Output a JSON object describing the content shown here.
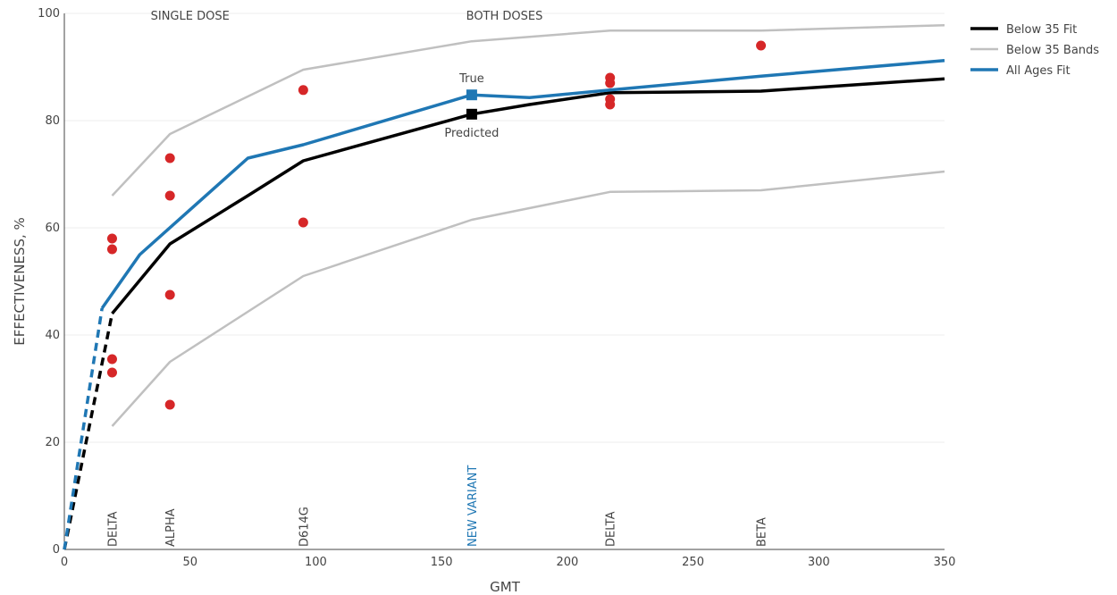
{
  "chart_data": {
    "type": "line",
    "xlabel": "GMT",
    "ylabel": "EFFECTIVENESS, %",
    "xlim": [
      0,
      350
    ],
    "ylim": [
      0,
      100
    ],
    "x_ticks": [
      0,
      50,
      100,
      150,
      200,
      250,
      300,
      350
    ],
    "y_ticks": [
      0,
      20,
      40,
      60,
      80,
      100
    ],
    "grid": "horizontal",
    "legend_position": "top-right",
    "section_labels": [
      {
        "text": "SINGLE DOSE",
        "x": 50
      },
      {
        "text": "BOTH DOSES",
        "x": 175
      }
    ],
    "variant_labels": [
      {
        "text": "DELTA",
        "x": 19,
        "color": "#444444"
      },
      {
        "text": "ALPHA",
        "x": 42,
        "color": "#444444"
      },
      {
        "text": "D614G",
        "x": 95,
        "color": "#444444"
      },
      {
        "text": "NEW VARIANT",
        "x": 162,
        "color": "#1f77b4"
      },
      {
        "text": "DELTA",
        "x": 217,
        "color": "#444444"
      },
      {
        "text": "BETA",
        "x": 277,
        "color": "#444444"
      }
    ],
    "series": [
      {
        "name": "Below 35 Fit",
        "color": "#000000",
        "width": 3.5,
        "x": [
          19,
          42,
          73,
          95,
          162,
          185,
          217,
          277,
          350
        ],
        "y": [
          44,
          57,
          66,
          72.5,
          81.2,
          83,
          85.2,
          85.5,
          87.8
        ],
        "dashed_x": [
          0,
          19
        ],
        "dashed_y": [
          0,
          44
        ]
      },
      {
        "name": "Below 35 Bands",
        "color": "#c0c0c0",
        "width": 2.5,
        "x": [
          19,
          42,
          95,
          162,
          217,
          277,
          350
        ],
        "y": [
          66,
          77.5,
          89.5,
          94.8,
          96.8,
          96.8,
          97.8
        ]
      },
      {
        "name": "",
        "color": "#c0c0c0",
        "width": 2.5,
        "x": [
          19,
          42,
          95,
          162,
          217,
          277,
          350
        ],
        "y": [
          23,
          35,
          51,
          61.5,
          66.7,
          67,
          70.5
        ]
      },
      {
        "name": "All Ages Fit",
        "color": "#1f77b4",
        "width": 3.5,
        "x": [
          15,
          30,
          73,
          95,
          162,
          185,
          217,
          277,
          350
        ],
        "y": [
          45,
          55,
          73,
          75.5,
          84.8,
          84.3,
          85.7,
          88.3,
          91.2
        ],
        "dashed_x": [
          0,
          15
        ],
        "dashed_y": [
          0,
          45
        ]
      }
    ],
    "scatter": {
      "color": "#d62728",
      "points": [
        [
          19,
          58
        ],
        [
          19,
          56
        ],
        [
          19,
          35.5
        ],
        [
          19,
          33
        ],
        [
          42,
          73
        ],
        [
          42,
          66
        ],
        [
          42,
          47.5
        ],
        [
          42,
          27
        ],
        [
          95,
          85.7
        ],
        [
          95,
          61
        ],
        [
          217,
          88
        ],
        [
          217,
          87
        ],
        [
          217,
          84
        ],
        [
          217,
          83
        ],
        [
          277,
          94
        ]
      ]
    },
    "markers": [
      {
        "text": "True",
        "x": 162,
        "y": 84.8,
        "color": "#1f77b4",
        "label_pos": "above"
      },
      {
        "text": "Predicted",
        "x": 162,
        "y": 81.2,
        "color": "#000000",
        "label_pos": "below"
      }
    ]
  }
}
